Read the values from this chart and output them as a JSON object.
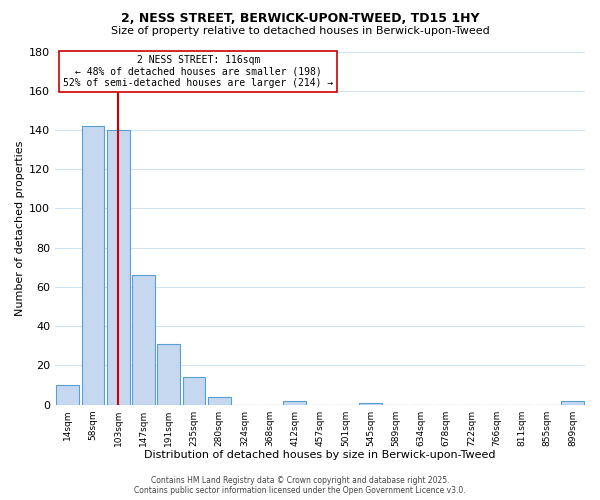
{
  "title1": "2, NESS STREET, BERWICK-UPON-TWEED, TD15 1HY",
  "title2": "Size of property relative to detached houses in Berwick-upon-Tweed",
  "xlabel": "Distribution of detached houses by size in Berwick-upon-Tweed",
  "ylabel": "Number of detached properties",
  "bar_color": "#c5d8f0",
  "bar_edge_color": "#5a9fd4",
  "vline_color": "#cc0000",
  "categories": [
    "14sqm",
    "58sqm",
    "103sqm",
    "147sqm",
    "191sqm",
    "235sqm",
    "280sqm",
    "324sqm",
    "368sqm",
    "412sqm",
    "457sqm",
    "501sqm",
    "545sqm",
    "589sqm",
    "634sqm",
    "678sqm",
    "722sqm",
    "766sqm",
    "811sqm",
    "855sqm",
    "899sqm"
  ],
  "values": [
    10,
    142,
    140,
    66,
    31,
    14,
    4,
    0,
    0,
    2,
    0,
    0,
    1,
    0,
    0,
    0,
    0,
    0,
    0,
    0,
    2
  ],
  "ylim": [
    0,
    180
  ],
  "yticks": [
    0,
    20,
    40,
    60,
    80,
    100,
    120,
    140,
    160,
    180
  ],
  "annotation_title": "2 NESS STREET: 116sqm",
  "annotation_line1": "← 48% of detached houses are smaller (198)",
  "annotation_line2": "52% of semi-detached houses are larger (214) →",
  "footer1": "Contains HM Land Registry data © Crown copyright and database right 2025.",
  "footer2": "Contains public sector information licensed under the Open Government Licence v3.0.",
  "background_color": "#ffffff",
  "grid_color": "#d0e4f5"
}
